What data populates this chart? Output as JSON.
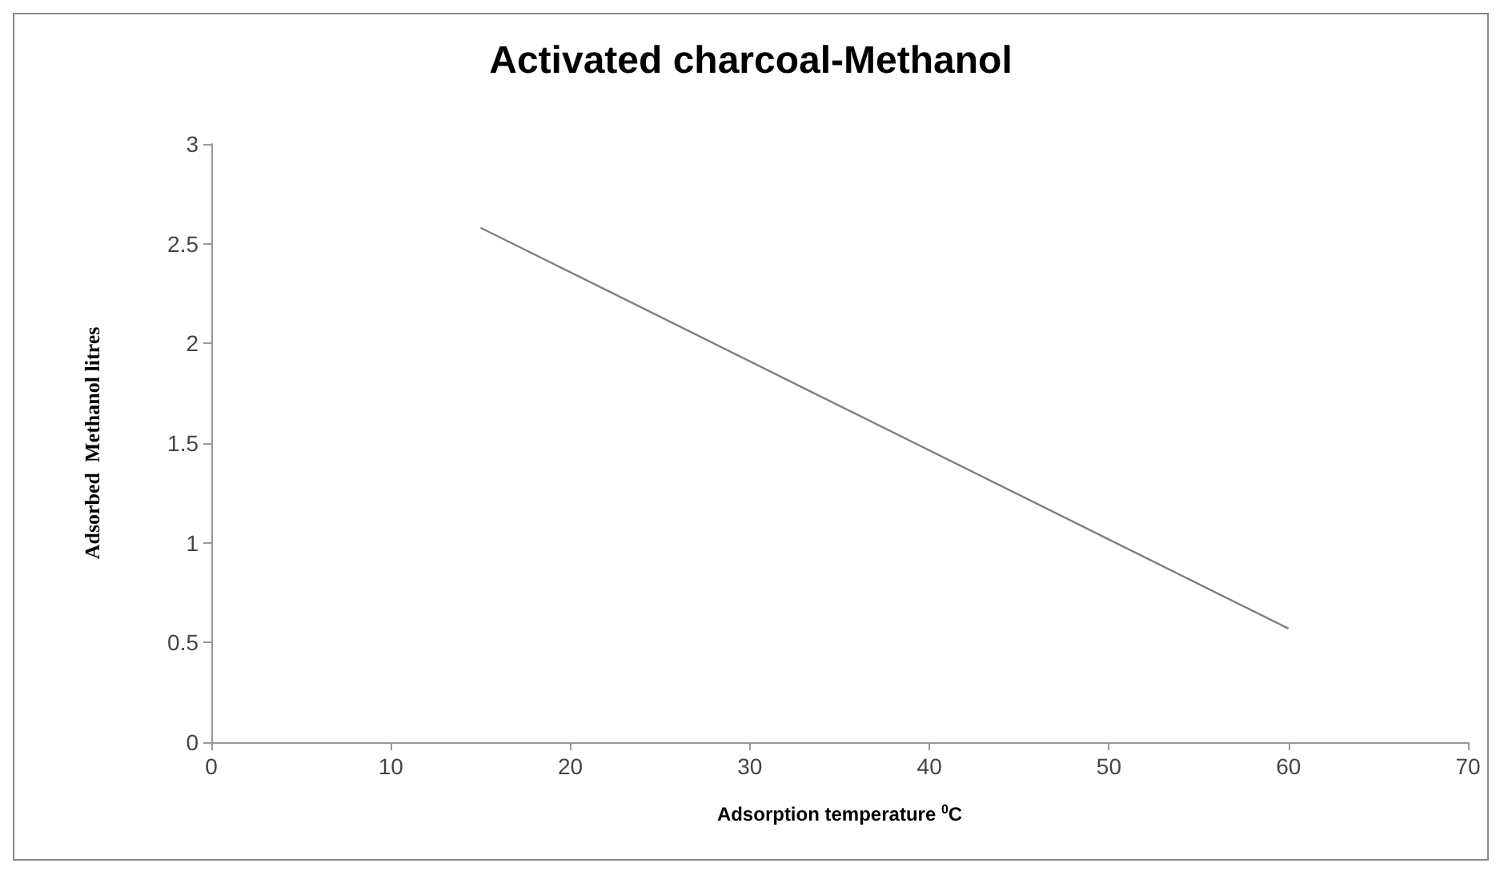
{
  "chart_data": {
    "type": "line",
    "title": "Activated charcoal-Methanol",
    "xlabel": "Adsorption temperature $^{0}$C",
    "ylabel": "Adsorbed  Methanol litres",
    "x": [
      15,
      60
    ],
    "series": [
      {
        "color": "#808080",
        "values": [
          2.58,
          0.57
        ]
      }
    ],
    "xlim": [
      0,
      70
    ],
    "xticks": [
      0,
      10,
      20,
      30,
      40,
      50,
      60,
      70
    ],
    "ylim": [
      0,
      3
    ],
    "yticks": [
      0,
      0.5,
      1,
      1.5,
      2,
      2.5,
      3
    ],
    "grid": false,
    "marker": "none",
    "line_style": "solid"
  }
}
